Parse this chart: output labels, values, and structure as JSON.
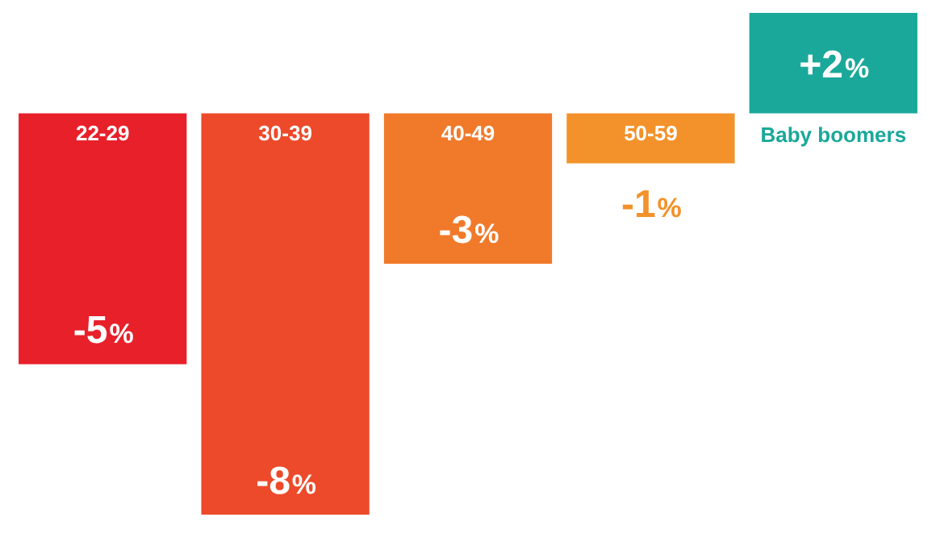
{
  "chart_data": {
    "type": "bar",
    "categories": [
      "22-29",
      "30-39",
      "40-49",
      "50-59",
      "Baby boomers"
    ],
    "values": [
      -5,
      -8,
      -3,
      -1,
      2
    ],
    "colors": [
      "#e8202a",
      "#ec4a2a",
      "#f07a2a",
      "#f3922a",
      "#1aa89a"
    ],
    "value_labels": [
      "-5%",
      "-8%",
      "-3%",
      "-1%",
      "+2%"
    ],
    "ylim": [
      -8,
      2
    ],
    "tick_labels": false,
    "legend": false
  }
}
